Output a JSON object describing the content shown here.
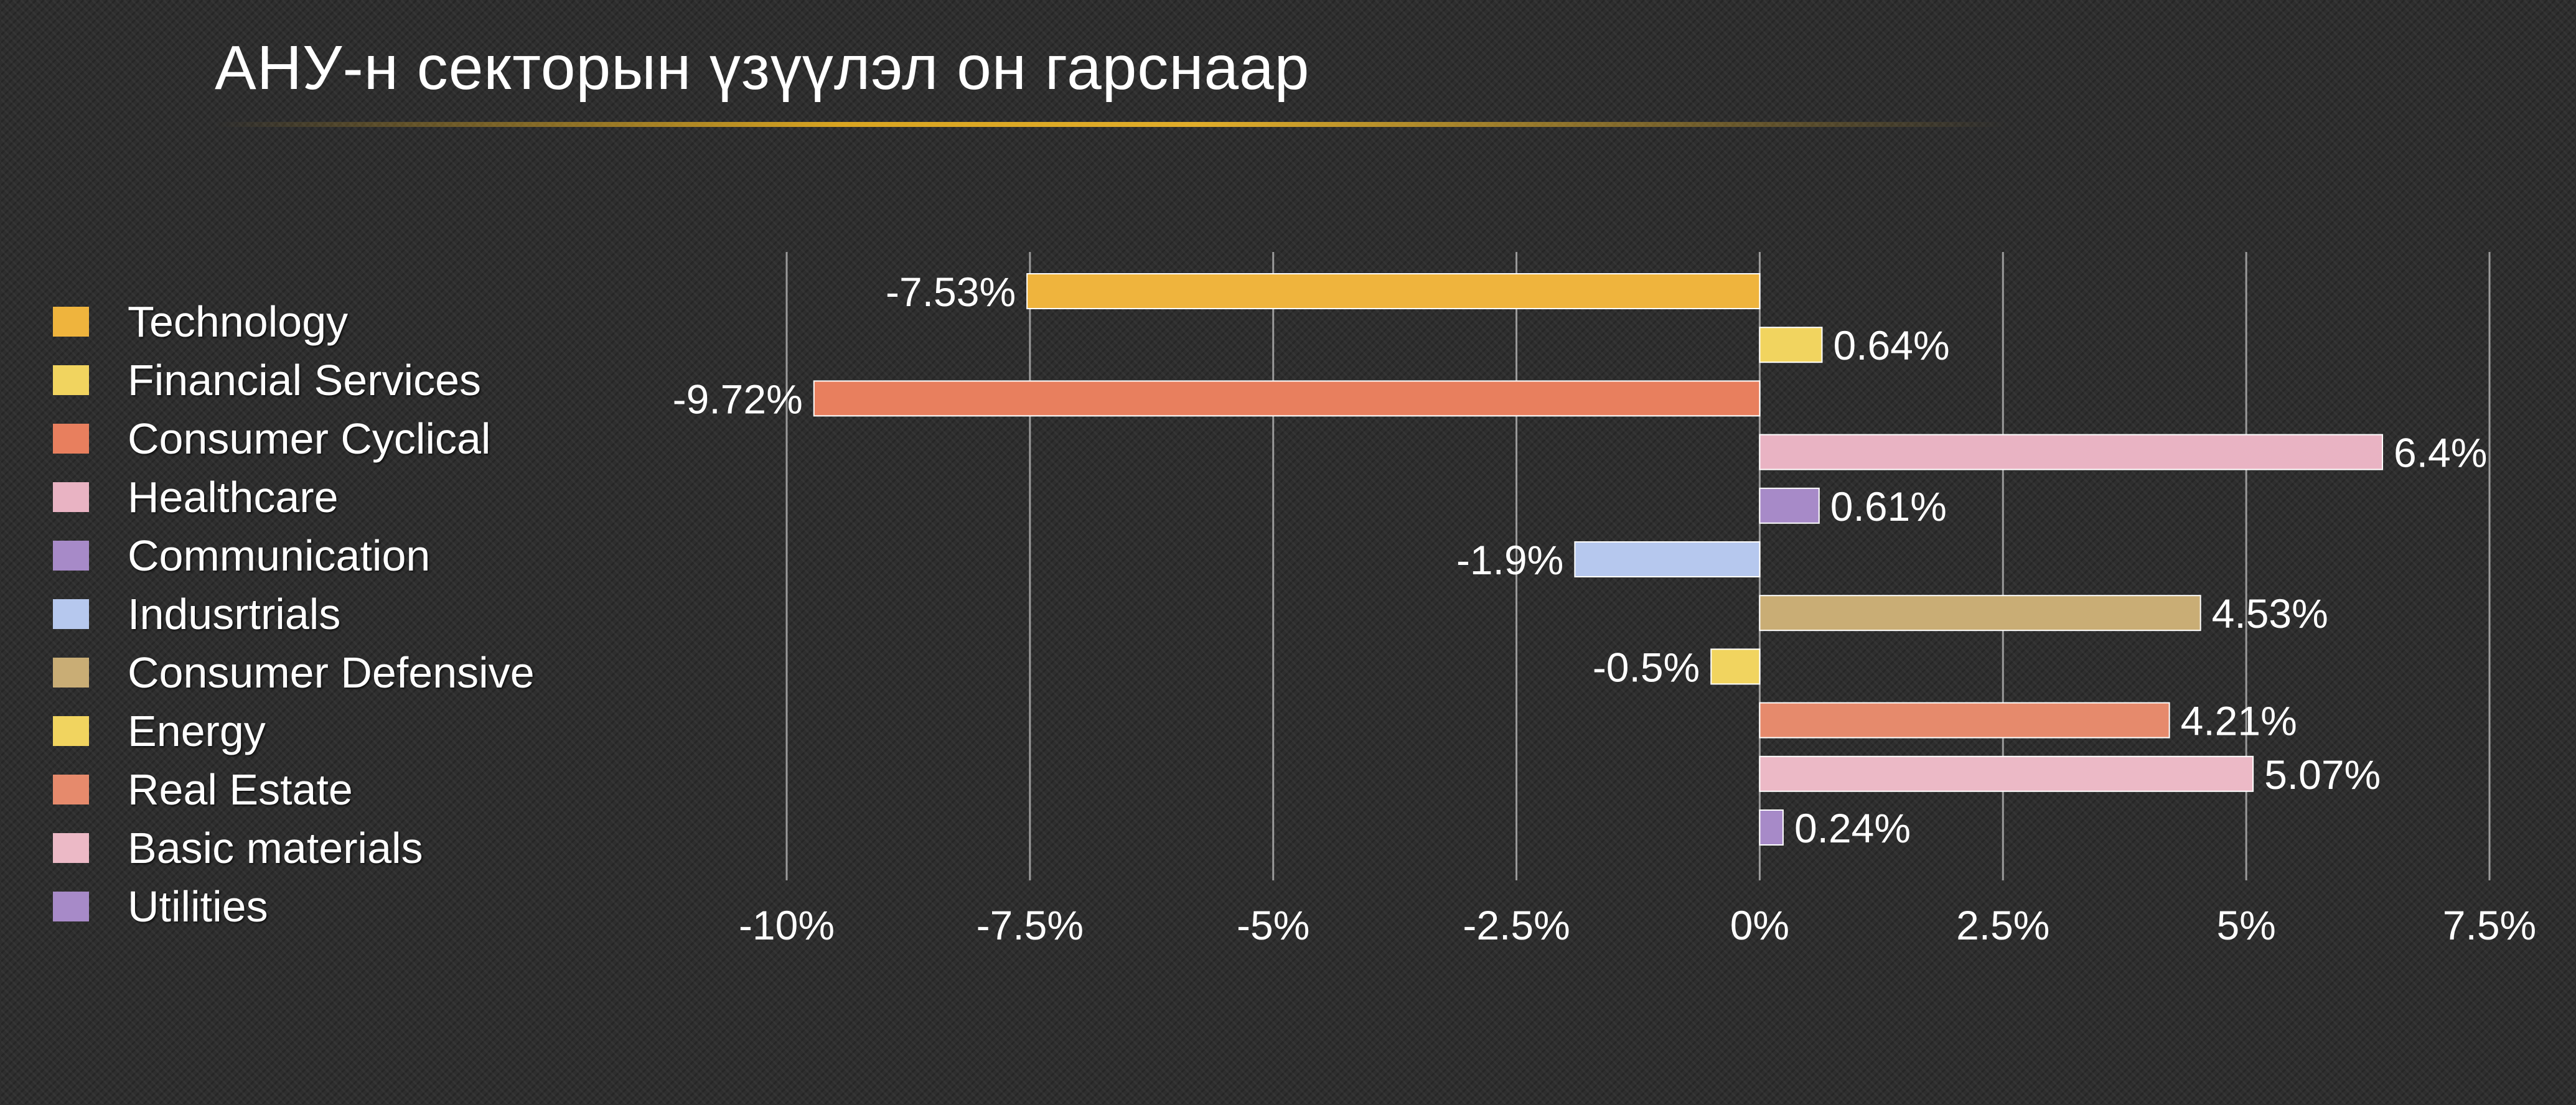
{
  "chart_data": {
    "type": "bar",
    "orientation": "horizontal",
    "title": "АНУ-н секторын үзүүлэл он гарснаар",
    "categories": [
      "Technology",
      "Financial Services",
      "Consumer Cyclical",
      "Healthcare",
      "Communication",
      "Indusrtrials",
      "Consumer Defensive",
      "Energy",
      "Real Estate",
      "Basic materials",
      "Utilities"
    ],
    "values": [
      -7.53,
      0.64,
      -9.72,
      6.4,
      0.61,
      -1.9,
      4.53,
      -0.5,
      4.21,
      5.07,
      0.24
    ],
    "value_labels": [
      "-7.53%",
      "0.64%",
      "-9.72%",
      "6.4%",
      "0.61%",
      "-1.9%",
      "4.53%",
      "-0.5%",
      "4.21%",
      "5.07%",
      "0.24%"
    ],
    "colors": [
      "#efb43d",
      "#f1d45f",
      "#e87f5e",
      "#e9b3c3",
      "#a78ac8",
      "#b6c8ee",
      "#c9ad75",
      "#f1d45f",
      "#e68a6c",
      "#ecb9c6",
      "#a78ac8"
    ],
    "xlim": [
      -10,
      7.5
    ],
    "xticks": [
      -10,
      -7.5,
      -5,
      -2.5,
      0,
      2.5,
      5,
      7.5
    ],
    "xtick_labels": [
      "-10%",
      "-7.5%",
      "-5%",
      "-2.5%",
      "0%",
      "2.5%",
      "5%",
      "7.5%"
    ],
    "grid": "vertical",
    "legend_position": "left",
    "xlabel": "",
    "ylabel": ""
  }
}
